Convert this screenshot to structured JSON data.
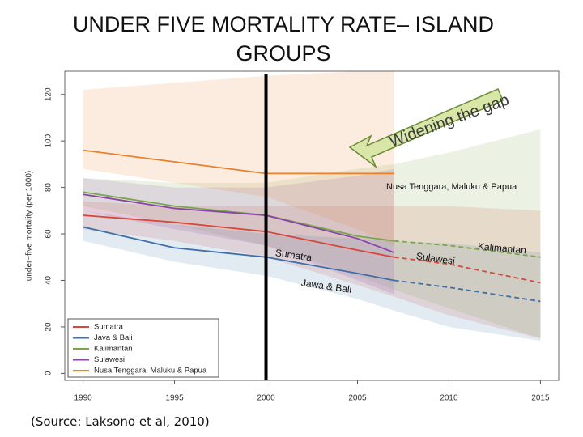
{
  "chart_data": {
    "type": "line",
    "title": "UNDER FIVE MORTALITY RATE– ISLAND GROUPS",
    "ylabel": "under−five mortality (per 1000)",
    "source": "(Source: Laksono et al, 2010)",
    "x": [
      1990,
      1995,
      2000,
      2005,
      2007,
      2010,
      2015
    ],
    "xlim": [
      1989,
      2016
    ],
    "xticks": [
      1990,
      1995,
      2000,
      2005,
      2010,
      2015
    ],
    "ylim": [
      -3,
      130
    ],
    "yticks": [
      0,
      20,
      40,
      60,
      80,
      100,
      120
    ],
    "solid_until": 2007,
    "marker_year": 2000,
    "legend": "lower left",
    "series": [
      {
        "name": "Sumatra",
        "color": "#d9473c",
        "values": [
          68,
          65,
          61,
          53,
          50,
          47,
          39
        ],
        "lower": [
          62,
          57,
          50,
          38,
          33,
          25,
          15
        ],
        "upper": [
          74,
          72,
          72,
          72,
          72,
          72,
          70
        ]
      },
      {
        "name": "Java & Bali",
        "color": "#3f6fa8",
        "values": [
          63,
          54,
          50,
          43,
          40,
          37,
          31
        ],
        "lower": [
          57,
          48,
          42,
          32,
          27,
          20,
          14
        ],
        "upper": [
          70,
          64,
          60,
          58,
          57,
          56,
          52
        ]
      },
      {
        "name": "Kalimantan",
        "color": "#7aa64a",
        "values": [
          78,
          72,
          68,
          59,
          57,
          55,
          50
        ],
        "lower": [
          72,
          64,
          55,
          42,
          36,
          28,
          15
        ],
        "upper": [
          84,
          82,
          82,
          88,
          90,
          95,
          105
        ]
      },
      {
        "name": "Sulawesi",
        "color": "#8a44a8",
        "values": [
          77,
          71,
          68,
          58,
          52,
          null,
          null
        ],
        "lower": [
          70,
          62,
          55,
          40,
          34,
          null,
          null
        ],
        "upper": [
          84,
          80,
          80,
          85,
          88,
          null,
          null
        ]
      },
      {
        "name": "Nusa Tenggara, Maluku & Papua",
        "color": "#e8802c",
        "values": [
          96,
          91,
          86,
          86,
          86,
          null,
          null
        ],
        "lower": [
          88,
          82,
          76,
          62,
          55,
          null,
          null
        ],
        "upper": [
          122,
          125,
          128,
          130,
          130,
          null,
          null
        ]
      }
    ],
    "annotations": [
      "Widening the gap",
      "Nusa Tenggara, Maluku & Papua",
      "Kalimantan",
      "Sumatra",
      "Sulawesi",
      "Jawa & Bali"
    ]
  }
}
